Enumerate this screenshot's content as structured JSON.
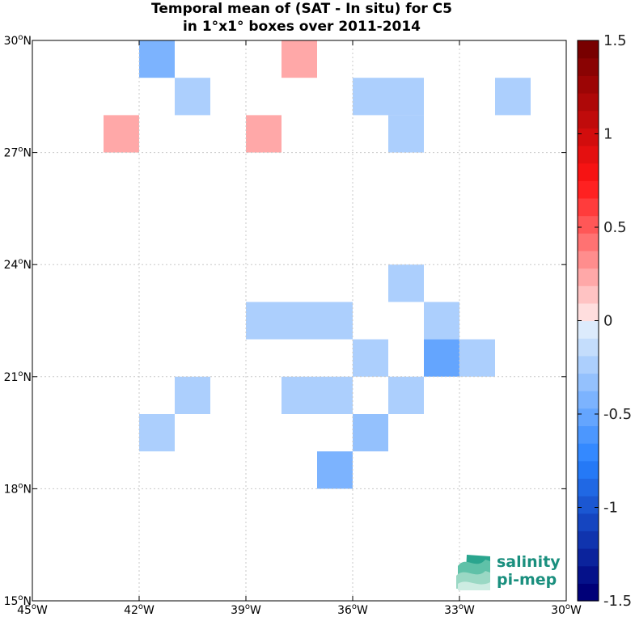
{
  "title": {
    "line1": "Temporal mean of (SAT - In situ) for C5",
    "line2": "in 1°x1° boxes over 2011-2014"
  },
  "map": {
    "lon_range": [
      -45,
      -30
    ],
    "lat_range": [
      15,
      30
    ],
    "x_ticks": [
      {
        "value": -45,
        "label": "45°W"
      },
      {
        "value": -42,
        "label": "42°W"
      },
      {
        "value": -39,
        "label": "39°W"
      },
      {
        "value": -36,
        "label": "36°W"
      },
      {
        "value": -33,
        "label": "33°W"
      },
      {
        "value": -30,
        "label": "30°W"
      }
    ],
    "y_ticks": [
      {
        "value": 30,
        "label": "30°N"
      },
      {
        "value": 27,
        "label": "27°N"
      },
      {
        "value": 24,
        "label": "24°N"
      },
      {
        "value": 21,
        "label": "21°N"
      },
      {
        "value": 18,
        "label": "18°N"
      },
      {
        "value": 15,
        "label": "15°N"
      }
    ],
    "grid": true
  },
  "chart_data": {
    "type": "heatmap",
    "cell_size_deg": 1,
    "cells": [
      {
        "lon": -42,
        "lat": 29,
        "value": -0.45
      },
      {
        "lon": -38,
        "lat": 29,
        "value": 0.2
      },
      {
        "lon": -41,
        "lat": 28,
        "value": -0.2
      },
      {
        "lon": -36,
        "lat": 28,
        "value": -0.2
      },
      {
        "lon": -35,
        "lat": 28,
        "value": -0.2
      },
      {
        "lon": -32,
        "lat": 28,
        "value": -0.2
      },
      {
        "lon": -43,
        "lat": 27,
        "value": 0.2
      },
      {
        "lon": -39,
        "lat": 27,
        "value": 0.2
      },
      {
        "lon": -35,
        "lat": 27,
        "value": -0.2
      },
      {
        "lon": -35,
        "lat": 23,
        "value": -0.2
      },
      {
        "lon": -39,
        "lat": 22,
        "value": -0.2
      },
      {
        "lon": -38,
        "lat": 22,
        "value": -0.2
      },
      {
        "lon": -37,
        "lat": 22,
        "value": -0.2
      },
      {
        "lon": -34,
        "lat": 22,
        "value": -0.2
      },
      {
        "lon": -36,
        "lat": 21,
        "value": -0.2
      },
      {
        "lon": -34,
        "lat": 21,
        "value": -0.5
      },
      {
        "lon": -33,
        "lat": 21,
        "value": -0.2
      },
      {
        "lon": -41,
        "lat": 20,
        "value": -0.2
      },
      {
        "lon": -38,
        "lat": 20,
        "value": -0.2
      },
      {
        "lon": -37,
        "lat": 20,
        "value": -0.2
      },
      {
        "lon": -35,
        "lat": 20,
        "value": -0.2
      },
      {
        "lon": -42,
        "lat": 19,
        "value": -0.2
      },
      {
        "lon": -36,
        "lat": 19,
        "value": -0.3
      },
      {
        "lon": -37,
        "lat": 18,
        "value": -0.45
      }
    ]
  },
  "colorbar": {
    "min": -1.5,
    "max": 1.5,
    "levels": 32,
    "ticks": [
      {
        "value": 1.5,
        "label": "1.5"
      },
      {
        "value": 1,
        "label": "1"
      },
      {
        "value": 0.5,
        "label": "0.5"
      },
      {
        "value": 0,
        "label": "0"
      },
      {
        "value": -0.5,
        "label": "-0.5"
      },
      {
        "value": -1,
        "label": "-1"
      },
      {
        "value": -1.5,
        "label": "-1.5"
      }
    ]
  },
  "logo": {
    "line1": "salinity",
    "line2": "pi-mep"
  }
}
